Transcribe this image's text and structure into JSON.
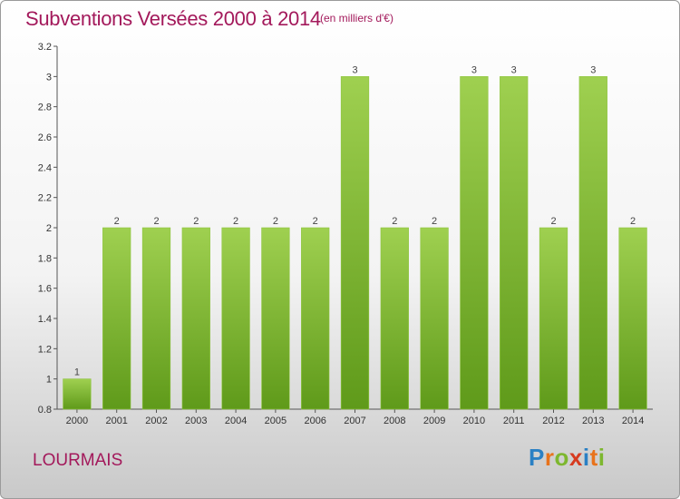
{
  "chart_data": {
    "type": "bar",
    "title": "Subventions Versées 2000 à 2014",
    "subtitle": "(en milliers d'€)",
    "categories": [
      "2000",
      "2001",
      "2002",
      "2003",
      "2004",
      "2005",
      "2006",
      "2007",
      "2008",
      "2009",
      "2010",
      "2011",
      "2012",
      "2013",
      "2014"
    ],
    "values": [
      1,
      2,
      2,
      2,
      2,
      2,
      2,
      3,
      2,
      2,
      3,
      3,
      2,
      3,
      2
    ],
    "value_labels": [
      "1",
      "2",
      "2",
      "2",
      "2",
      "2",
      "2",
      "3",
      "2",
      "2",
      "3",
      "3",
      "2",
      "3",
      "2"
    ],
    "ylim": [
      0.8,
      3.2
    ],
    "yticks": [
      0.8,
      1,
      1.2,
      1.4,
      1.6,
      1.8,
      2,
      2.2,
      2.4,
      2.6,
      2.8,
      3,
      3.2
    ],
    "ytick_labels": [
      "0.8",
      "1",
      "1.2",
      "1.4",
      "1.6",
      "1.8",
      "2",
      "2.2",
      "2.4",
      "2.6",
      "2.8",
      "3",
      "3.2"
    ],
    "grid": false,
    "bar_color": "#7ab631",
    "bar_color_light": "#9fd050",
    "bar_color_dark": "#5f9a1a"
  },
  "place_name": "LOURMAIS",
  "logo": {
    "letters": [
      "P",
      "r",
      "o",
      "x",
      "i",
      "t",
      "i"
    ]
  }
}
